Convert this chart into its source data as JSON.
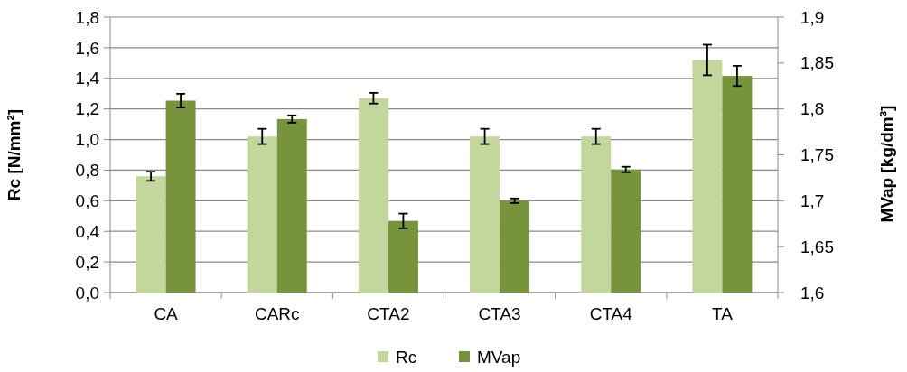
{
  "chart_data": {
    "type": "bar",
    "categories": [
      "CA",
      "CARc",
      "CTA2",
      "CTA3",
      "CTA4",
      "TA"
    ],
    "series": [
      {
        "name": "Rc",
        "color": "#c3d69b",
        "values": [
          0.76,
          1.02,
          1.27,
          1.02,
          1.02,
          1.52
        ],
        "errors": [
          0.03,
          0.05,
          0.035,
          0.05,
          0.05,
          0.1
        ]
      },
      {
        "name": "MVap",
        "color": "#77933c",
        "axis": "y2",
        "values": [
          1.809,
          1.789,
          1.678,
          1.7,
          1.734,
          1.836
        ],
        "errors": [
          0.0075,
          0.004,
          0.008,
          0.0025,
          0.003,
          0.011
        ]
      }
    ],
    "ylabel": "Rc [N/mm²]",
    "y2label": "MVap [kg/dm³]",
    "ylim": [
      0,
      1.8
    ],
    "yticks": [
      {
        "value": 0,
        "label": "0,0"
      },
      {
        "value": 0.2,
        "label": "0,2"
      },
      {
        "value": 0.4,
        "label": "0,4"
      },
      {
        "value": 0.6,
        "label": "0,6"
      },
      {
        "value": 0.8,
        "label": "0,8"
      },
      {
        "value": 1,
        "label": "1,0"
      },
      {
        "value": 1.2,
        "label": "1,2"
      },
      {
        "value": 1.4,
        "label": "1,4"
      },
      {
        "value": 1.6,
        "label": "1,6"
      },
      {
        "value": 1.8,
        "label": "1,8"
      }
    ],
    "y2lim": [
      1.6,
      1.9
    ],
    "y2ticks": [
      {
        "value": 1.6,
        "label": "1,6"
      },
      {
        "value": 1.65,
        "label": "1,65"
      },
      {
        "value": 1.7,
        "label": "1,7"
      },
      {
        "value": 1.75,
        "label": "1,75"
      },
      {
        "value": 1.8,
        "label": "1,8"
      },
      {
        "value": 1.85,
        "label": "1,85"
      },
      {
        "value": 1.9,
        "label": "1,9"
      }
    ],
    "grid": "y",
    "legend": "bottom"
  }
}
